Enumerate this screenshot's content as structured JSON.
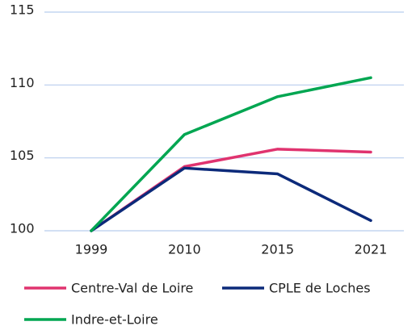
{
  "chart_data": {
    "type": "line",
    "categories": [
      "1999",
      "2010",
      "2015",
      "2021"
    ],
    "series": [
      {
        "name": "Centre-Val de Loire",
        "color": "#e0336f",
        "values": [
          100,
          104.4,
          105.6,
          105.4
        ]
      },
      {
        "name": "CPLE de Loches",
        "color": "#0c2a7a",
        "values": [
          100,
          104.3,
          103.9,
          100.7
        ]
      },
      {
        "name": "Indre-et-Loire",
        "color": "#00a651",
        "values": [
          100,
          106.6,
          109.2,
          110.5
        ]
      }
    ],
    "ylim": [
      100,
      115
    ],
    "yticks": [
      100,
      105,
      110,
      115
    ],
    "grid": true,
    "legend": "bottom"
  }
}
